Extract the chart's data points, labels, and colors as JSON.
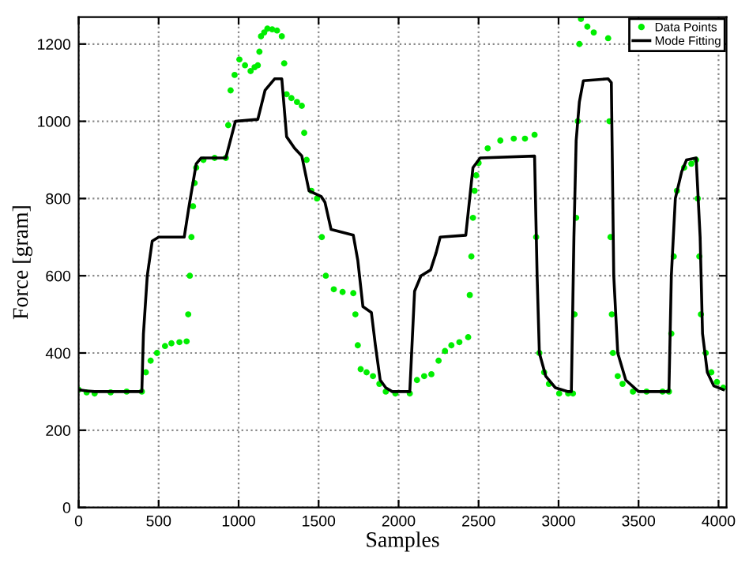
{
  "chart_data": {
    "type": "line",
    "xlabel": "Samples",
    "ylabel": "Force [gram]",
    "xlim": [
      0,
      4050
    ],
    "ylim": [
      0,
      1270
    ],
    "xticks": [
      0,
      500,
      1000,
      1500,
      2000,
      2500,
      3000,
      3500,
      4000
    ],
    "yticks": [
      0,
      200,
      400,
      600,
      800,
      1000,
      1200
    ],
    "grid": true,
    "legend": "top right",
    "series": [
      {
        "name": "Data Points",
        "type": "scatter",
        "marker": "circle",
        "color": "#00ee00",
        "x": [
          0,
          50,
          100,
          200,
          300,
          395,
          420,
          450,
          490,
          540,
          580,
          630,
          675,
          685,
          695,
          705,
          715,
          725,
          735,
          780,
          850,
          920,
          935,
          950,
          975,
          1005,
          1040,
          1075,
          1100,
          1120,
          1130,
          1140,
          1160,
          1180,
          1210,
          1240,
          1270,
          1285,
          1300,
          1330,
          1365,
          1395,
          1410,
          1425,
          1455,
          1490,
          1520,
          1545,
          1595,
          1650,
          1717,
          1730,
          1745,
          1763,
          1800,
          1840,
          1880,
          1920,
          1980,
          2070,
          2115,
          2160,
          2205,
          2250,
          2290,
          2330,
          2380,
          2435,
          2445,
          2455,
          2465,
          2475,
          2485,
          2500,
          2557,
          2636,
          2720,
          2790,
          2850,
          2860,
          2880,
          2910,
          2940,
          3004,
          3060,
          3090,
          3100,
          3110,
          3120,
          3130,
          3140,
          3180,
          3220,
          3310,
          3318,
          3325,
          3333,
          3340,
          3370,
          3400,
          3465,
          3550,
          3650,
          3690,
          3705,
          3720,
          3740,
          3785,
          3830,
          3860,
          3870,
          3880,
          3890,
          3920,
          3955,
          3990,
          4030
        ],
        "values": [
          305,
          298,
          295,
          298,
          300,
          300,
          350,
          380,
          400,
          418,
          425,
          428,
          430,
          500,
          600,
          700,
          780,
          840,
          880,
          900,
          905,
          905,
          990,
          1080,
          1120,
          1160,
          1145,
          1130,
          1140,
          1145,
          1180,
          1220,
          1230,
          1240,
          1238,
          1235,
          1220,
          1150,
          1070,
          1060,
          1050,
          1040,
          970,
          900,
          820,
          800,
          700,
          600,
          565,
          558,
          555,
          500,
          420,
          358,
          350,
          340,
          320,
          300,
          295,
          295,
          330,
          340,
          345,
          380,
          405,
          420,
          428,
          441,
          550,
          650,
          750,
          820,
          860,
          892,
          930,
          950,
          955,
          955,
          965,
          700,
          400,
          350,
          320,
          295,
          295,
          295,
          500,
          750,
          1000,
          1200,
          1265,
          1245,
          1230,
          1215,
          1000,
          700,
          500,
          400,
          340,
          320,
          300,
          300,
          300,
          300,
          450,
          650,
          820,
          880,
          890,
          900,
          800,
          650,
          500,
          400,
          350,
          325,
          310
        ]
      },
      {
        "name": "Mode Fitting",
        "color": "#000000",
        "line_style": "solid",
        "x": [
          0,
          50,
          100,
          395,
          405,
          429,
          460,
          500,
          660,
          690,
          735,
          765,
          920,
          980,
          1120,
          1165,
          1225,
          1270,
          1300,
          1350,
          1395,
          1440,
          1517,
          1540,
          1578,
          1717,
          1745,
          1777,
          1830,
          1855,
          1885,
          1920,
          1960,
          2070,
          2100,
          2140,
          2200,
          2235,
          2260,
          2420,
          2465,
          2510,
          2850,
          2866,
          2880,
          2920,
          2980,
          3060,
          3080,
          3096,
          3110,
          3130,
          3155,
          3310,
          3330,
          3345,
          3370,
          3420,
          3500,
          3690,
          3705,
          3730,
          3770,
          3800,
          3860,
          3885,
          3900,
          3930,
          3970,
          4030
        ],
        "values": [
          305,
          302,
          300,
          300,
          450,
          600,
          690,
          700,
          700,
          780,
          890,
          905,
          905,
          1000,
          1005,
          1080,
          1110,
          1110,
          960,
          930,
          910,
          820,
          805,
          790,
          720,
          705,
          640,
          520,
          505,
          420,
          330,
          310,
          300,
          300,
          560,
          600,
          615,
          660,
          700,
          705,
          880,
          905,
          910,
          600,
          400,
          340,
          310,
          300,
          300,
          700,
          950,
          1050,
          1105,
          1110,
          1100,
          600,
          400,
          330,
          300,
          300,
          600,
          800,
          870,
          900,
          905,
          700,
          450,
          350,
          315,
          305
        ]
      }
    ]
  }
}
